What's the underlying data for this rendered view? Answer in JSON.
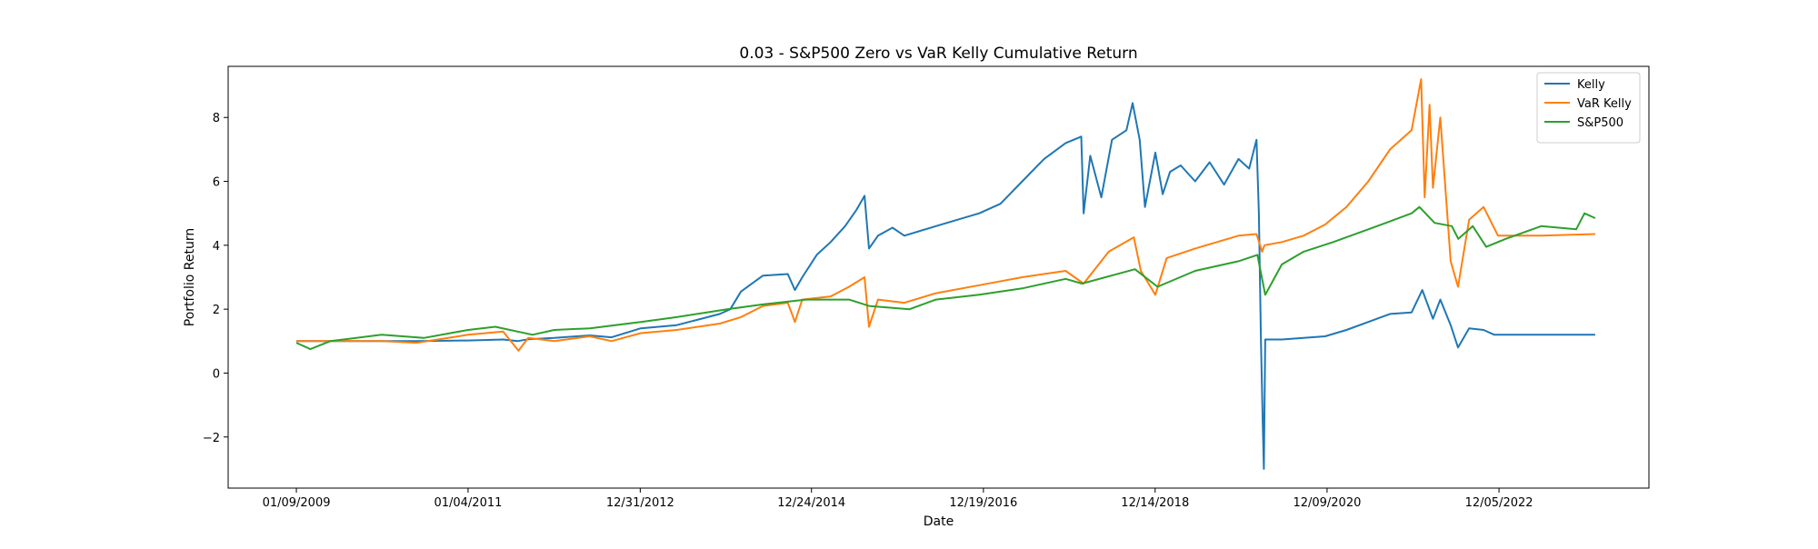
{
  "chart_data": {
    "type": "line",
    "title": "0.03 - S&P500 Zero vs VaR Kelly Cumulative Return",
    "xlabel": "Date",
    "ylabel": "Portfolio Return",
    "x_tick_labels": [
      "01/09/2009",
      "01/04/2011",
      "12/31/2012",
      "12/24/2014",
      "12/19/2016",
      "12/14/2018",
      "12/09/2020",
      "12/05/2022"
    ],
    "y_ticks": [
      -2,
      0,
      2,
      4,
      6,
      8
    ],
    "y_tick_labels": [
      "−2",
      "0",
      "2",
      "4",
      "6",
      "8"
    ],
    "xlim": [
      "2008-03-27",
      "2024-08-29"
    ],
    "ylim": [
      -3.6,
      9.6
    ],
    "grid": false,
    "legend_position": "top-right",
    "series": [
      {
        "name": "Kelly",
        "color": "#1f77b4",
        "points": [
          [
            "2009-01-09",
            1.0
          ],
          [
            "2009-06-01",
            1.0
          ],
          [
            "2010-01-04",
            1.0
          ],
          [
            "2010-06-01",
            1.0
          ],
          [
            "2011-01-04",
            1.02
          ],
          [
            "2011-06-01",
            1.05
          ],
          [
            "2011-08-01",
            1.0
          ],
          [
            "2011-09-15",
            1.06
          ],
          [
            "2012-01-03",
            1.1
          ],
          [
            "2012-06-01",
            1.18
          ],
          [
            "2012-09-01",
            1.12
          ],
          [
            "2013-01-02",
            1.4
          ],
          [
            "2013-06-03",
            1.5
          ],
          [
            "2013-12-02",
            1.85
          ],
          [
            "2014-01-15",
            2.0
          ],
          [
            "2014-03-01",
            2.55
          ],
          [
            "2014-06-02",
            3.05
          ],
          [
            "2014-09-15",
            3.1
          ],
          [
            "2014-10-15",
            2.6
          ],
          [
            "2014-11-15",
            3.0
          ],
          [
            "2015-01-15",
            3.7
          ],
          [
            "2015-03-15",
            4.1
          ],
          [
            "2015-05-15",
            4.6
          ],
          [
            "2015-07-01",
            5.1
          ],
          [
            "2015-08-05",
            5.55
          ],
          [
            "2015-08-24",
            3.9
          ],
          [
            "2015-10-01",
            4.3
          ],
          [
            "2015-12-01",
            4.55
          ],
          [
            "2016-01-20",
            4.3
          ],
          [
            "2016-06-01",
            4.6
          ],
          [
            "2016-12-01",
            5.0
          ],
          [
            "2017-03-01",
            5.3
          ],
          [
            "2017-06-01",
            6.0
          ],
          [
            "2017-09-01",
            6.7
          ],
          [
            "2017-12-01",
            7.2
          ],
          [
            "2018-02-05",
            7.4
          ],
          [
            "2018-02-15",
            5.0
          ],
          [
            "2018-03-15",
            6.8
          ],
          [
            "2018-05-01",
            5.5
          ],
          [
            "2018-06-15",
            7.3
          ],
          [
            "2018-08-15",
            7.6
          ],
          [
            "2018-09-10",
            8.45
          ],
          [
            "2018-10-10",
            7.3
          ],
          [
            "2018-11-01",
            5.2
          ],
          [
            "2018-12-15",
            6.9
          ],
          [
            "2019-01-15",
            5.6
          ],
          [
            "2019-02-15",
            6.3
          ],
          [
            "2019-04-01",
            6.5
          ],
          [
            "2019-06-01",
            6.0
          ],
          [
            "2019-08-01",
            6.6
          ],
          [
            "2019-10-01",
            5.9
          ],
          [
            "2019-12-01",
            6.7
          ],
          [
            "2020-01-15",
            6.4
          ],
          [
            "2020-02-15",
            7.3
          ],
          [
            "2020-02-25",
            5.0
          ],
          [
            "2020-03-05",
            1.0
          ],
          [
            "2020-03-12",
            -1.5
          ],
          [
            "2020-03-17",
            -3.0
          ],
          [
            "2020-03-23",
            1.05
          ],
          [
            "2020-06-01",
            1.05
          ],
          [
            "2020-09-01",
            1.1
          ],
          [
            "2020-12-01",
            1.15
          ],
          [
            "2021-03-01",
            1.35
          ],
          [
            "2021-06-01",
            1.6
          ],
          [
            "2021-09-01",
            1.85
          ],
          [
            "2021-12-01",
            1.9
          ],
          [
            "2022-01-15",
            2.6
          ],
          [
            "2022-03-01",
            1.7
          ],
          [
            "2022-04-01",
            2.3
          ],
          [
            "2022-05-15",
            1.5
          ],
          [
            "2022-06-15",
            0.8
          ],
          [
            "2022-08-01",
            1.4
          ],
          [
            "2022-10-01",
            1.35
          ],
          [
            "2022-11-15",
            1.2
          ],
          [
            "2023-06-01",
            1.2
          ],
          [
            "2024-01-15",
            1.2
          ]
        ]
      },
      {
        "name": "VaR Kelly",
        "color": "#ff7f0e",
        "points": [
          [
            "2009-01-09",
            1.0
          ],
          [
            "2009-06-01",
            1.0
          ],
          [
            "2010-01-04",
            1.0
          ],
          [
            "2010-06-01",
            0.95
          ],
          [
            "2011-01-04",
            1.2
          ],
          [
            "2011-06-01",
            1.3
          ],
          [
            "2011-08-05",
            0.7
          ],
          [
            "2011-09-15",
            1.1
          ],
          [
            "2012-01-03",
            1.0
          ],
          [
            "2012-06-01",
            1.15
          ],
          [
            "2012-09-01",
            1.0
          ],
          [
            "2013-01-02",
            1.25
          ],
          [
            "2013-06-03",
            1.35
          ],
          [
            "2013-12-02",
            1.55
          ],
          [
            "2014-03-01",
            1.75
          ],
          [
            "2014-06-02",
            2.1
          ],
          [
            "2014-09-15",
            2.2
          ],
          [
            "2014-10-15",
            1.6
          ],
          [
            "2014-11-15",
            2.3
          ],
          [
            "2015-03-15",
            2.4
          ],
          [
            "2015-06-01",
            2.7
          ],
          [
            "2015-08-05",
            3.0
          ],
          [
            "2015-08-24",
            1.45
          ],
          [
            "2015-10-01",
            2.3
          ],
          [
            "2016-01-20",
            2.2
          ],
          [
            "2016-06-01",
            2.5
          ],
          [
            "2016-12-01",
            2.75
          ],
          [
            "2017-06-01",
            3.0
          ],
          [
            "2017-12-01",
            3.2
          ],
          [
            "2018-02-15",
            2.8
          ],
          [
            "2018-06-01",
            3.8
          ],
          [
            "2018-09-15",
            4.25
          ],
          [
            "2018-10-15",
            3.2
          ],
          [
            "2018-12-15",
            2.45
          ],
          [
            "2019-02-01",
            3.6
          ],
          [
            "2019-06-01",
            3.9
          ],
          [
            "2019-12-01",
            4.3
          ],
          [
            "2020-02-15",
            4.35
          ],
          [
            "2020-03-10",
            3.8
          ],
          [
            "2020-03-20",
            4.0
          ],
          [
            "2020-06-01",
            4.1
          ],
          [
            "2020-09-01",
            4.3
          ],
          [
            "2020-12-01",
            4.65
          ],
          [
            "2021-03-01",
            5.2
          ],
          [
            "2021-06-01",
            6.0
          ],
          [
            "2021-09-01",
            7.0
          ],
          [
            "2021-12-01",
            7.6
          ],
          [
            "2022-01-10",
            9.2
          ],
          [
            "2022-01-25",
            5.5
          ],
          [
            "2022-02-15",
            8.4
          ],
          [
            "2022-03-01",
            5.8
          ],
          [
            "2022-04-01",
            8.0
          ],
          [
            "2022-05-15",
            3.5
          ],
          [
            "2022-06-15",
            2.7
          ],
          [
            "2022-08-01",
            4.8
          ],
          [
            "2022-10-01",
            5.2
          ],
          [
            "2022-12-01",
            4.3
          ],
          [
            "2023-06-01",
            4.3
          ],
          [
            "2024-01-15",
            4.35
          ]
        ]
      },
      {
        "name": "S&P500",
        "color": "#2ca02c",
        "points": [
          [
            "2009-01-09",
            0.95
          ],
          [
            "2009-03-09",
            0.75
          ],
          [
            "2009-06-01",
            1.0
          ],
          [
            "2010-01-04",
            1.2
          ],
          [
            "2010-07-01",
            1.1
          ],
          [
            "2011-01-04",
            1.35
          ],
          [
            "2011-04-29",
            1.45
          ],
          [
            "2011-10-03",
            1.2
          ],
          [
            "2012-01-03",
            1.35
          ],
          [
            "2012-06-01",
            1.4
          ],
          [
            "2013-01-02",
            1.6
          ],
          [
            "2013-06-03",
            1.75
          ],
          [
            "2014-01-02",
            2.0
          ],
          [
            "2014-06-02",
            2.15
          ],
          [
            "2014-12-01",
            2.3
          ],
          [
            "2015-06-01",
            2.3
          ],
          [
            "2015-08-24",
            2.1
          ],
          [
            "2016-02-11",
            2.0
          ],
          [
            "2016-06-01",
            2.3
          ],
          [
            "2016-12-01",
            2.45
          ],
          [
            "2017-06-01",
            2.65
          ],
          [
            "2017-12-01",
            2.95
          ],
          [
            "2018-02-08",
            2.8
          ],
          [
            "2018-09-20",
            3.25
          ],
          [
            "2018-12-24",
            2.7
          ],
          [
            "2019-06-01",
            3.2
          ],
          [
            "2019-12-01",
            3.5
          ],
          [
            "2020-02-19",
            3.7
          ],
          [
            "2020-03-23",
            2.45
          ],
          [
            "2020-06-01",
            3.4
          ],
          [
            "2020-09-01",
            3.8
          ],
          [
            "2021-01-04",
            4.1
          ],
          [
            "2021-06-01",
            4.5
          ],
          [
            "2021-12-01",
            5.0
          ],
          [
            "2022-01-03",
            5.2
          ],
          [
            "2022-03-08",
            4.7
          ],
          [
            "2022-05-20",
            4.6
          ],
          [
            "2022-06-16",
            4.2
          ],
          [
            "2022-08-16",
            4.6
          ],
          [
            "2022-10-12",
            3.95
          ],
          [
            "2023-01-02",
            4.2
          ],
          [
            "2023-06-01",
            4.6
          ],
          [
            "2023-10-27",
            4.5
          ],
          [
            "2023-12-01",
            5.0
          ],
          [
            "2024-01-15",
            4.85
          ]
        ]
      }
    ]
  }
}
